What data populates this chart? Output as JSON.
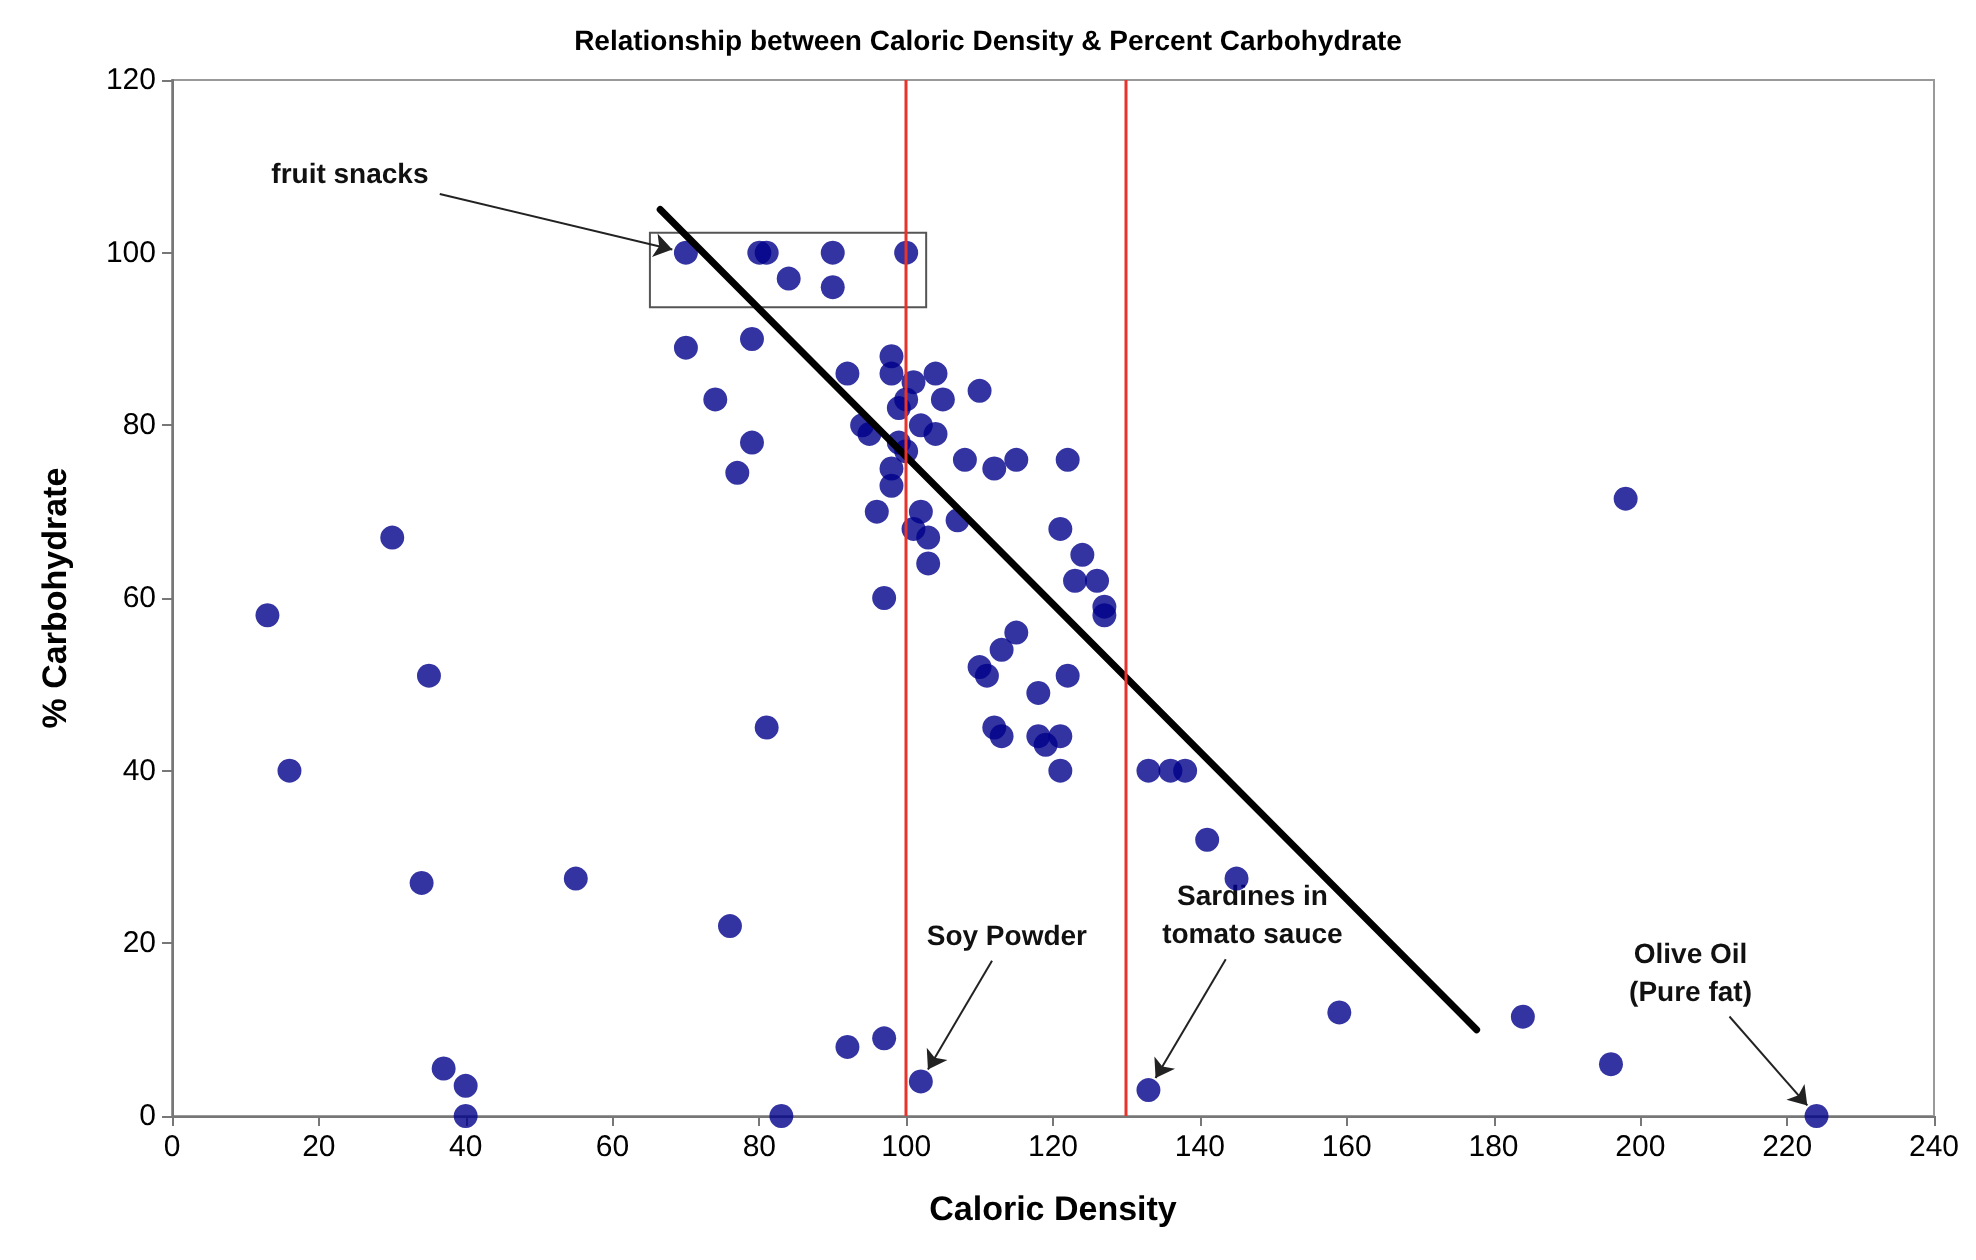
{
  "chart_data": {
    "type": "scatter",
    "title": "Relationship between Caloric Density & Percent Carbohydrate",
    "xlabel": "Caloric Density",
    "ylabel": "% Carbohydrate",
    "xlim": [
      0,
      240
    ],
    "xticks": [
      0,
      20,
      40,
      60,
      80,
      100,
      120,
      140,
      160,
      180,
      200,
      220,
      240
    ],
    "ylim": [
      0,
      120
    ],
    "yticks": [
      0,
      20,
      40,
      60,
      80,
      100,
      120
    ],
    "grid": false,
    "marker": "circle",
    "series": [
      {
        "type": "scatter",
        "color": "#00008b",
        "x": [
          13,
          16,
          30,
          35,
          34,
          37,
          40,
          40,
          55,
          76,
          81,
          83,
          92,
          97,
          102,
          70,
          80,
          81,
          84,
          90,
          90,
          100,
          70,
          74,
          79,
          77,
          79,
          92,
          94,
          95,
          96,
          97,
          98,
          98,
          99,
          99,
          98,
          98,
          100,
          100,
          101,
          102,
          101,
          102,
          103,
          103,
          104,
          105,
          104,
          107,
          108,
          110,
          112,
          115,
          110,
          111,
          112,
          113,
          113,
          115,
          118,
          119,
          118,
          121,
          121,
          121,
          122,
          122,
          123,
          124,
          126,
          127,
          127,
          133,
          136,
          138,
          141,
          145,
          133,
          159,
          184,
          196,
          198,
          224
        ],
        "values": [
          58,
          40,
          67,
          51,
          27,
          5.5,
          3.5,
          0,
          27.5,
          22,
          45,
          0,
          8,
          9,
          4,
          100,
          100,
          100,
          97,
          100,
          96,
          100,
          89,
          83,
          90,
          74.5,
          78,
          86,
          80,
          79,
          70,
          60,
          88,
          86,
          82,
          78,
          73,
          75,
          77,
          83,
          85,
          80,
          68,
          70,
          67,
          64,
          86,
          83,
          79,
          69,
          76,
          84,
          75,
          76,
          52,
          51,
          45,
          44,
          54,
          56,
          49,
          43,
          44,
          40,
          44,
          68,
          76,
          51,
          62,
          65,
          62,
          59,
          58,
          40,
          40,
          40,
          32,
          27.5,
          3,
          12,
          11.5,
          6,
          71.5,
          0
        ]
      },
      {
        "type": "line",
        "color": "#000000",
        "marker": "none",
        "line_style": "solid",
        "x": [
          66.5,
          177.7
        ],
        "values": [
          105,
          10
        ]
      }
    ],
    "ref_lines": [
      {
        "axis": "x",
        "value": 100,
        "label": null,
        "color": "#e8332a"
      },
      {
        "axis": "x",
        "value": 130,
        "label": null,
        "color": "#e8332a"
      }
    ],
    "annotations": [
      {
        "text": "fruit snacks",
        "x": 70,
        "y": 100
      },
      {
        "text": "Soy Powder",
        "x": 102,
        "y": 4
      },
      {
        "text": "Sardines in\ntomato sauce",
        "x": 133,
        "y": 3
      },
      {
        "text": "Olive Oil\n(Pure fat)",
        "x": 224,
        "y": 0
      }
    ]
  }
}
